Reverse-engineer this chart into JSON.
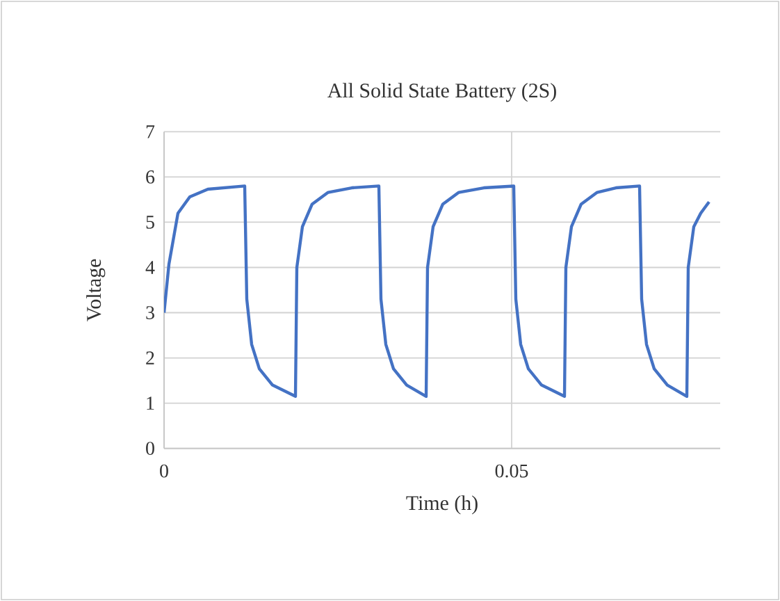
{
  "chart_data": {
    "type": "line",
    "title": "All Solid State Battery (2S)",
    "xlabel": "Time (h)",
    "ylabel": "Voltage",
    "xlim": [
      0,
      0.08
    ],
    "xticks": [
      0,
      0.05
    ],
    "ylim": [
      0,
      7
    ],
    "yticks": [
      0,
      1,
      2,
      3,
      4,
      5,
      6,
      7
    ],
    "grid": true,
    "marker": "none",
    "line_style": "solid",
    "series": [
      {
        "color": "#4472c4",
        "x": [
          0,
          0.0007,
          0.002,
          0.0037,
          0.0063,
          0.0116,
          0.0119,
          0.0126,
          0.0137,
          0.0156,
          0.0189,
          0.0191,
          0.0199,
          0.0213,
          0.0236,
          0.027,
          0.0309,
          0.0312,
          0.0319,
          0.033,
          0.0349,
          0.0377,
          0.0379,
          0.0387,
          0.0401,
          0.0424,
          0.046,
          0.0503,
          0.0506,
          0.0513,
          0.0524,
          0.0543,
          0.0576,
          0.0578,
          0.0586,
          0.06,
          0.0623,
          0.065,
          0.0684,
          0.0687,
          0.0694,
          0.0705,
          0.0724,
          0.0752,
          0.0754,
          0.0762,
          0.0772,
          0.0784
        ],
        "values": [
          3,
          4.07,
          5.2,
          5.56,
          5.73,
          5.8,
          3.3,
          2.3,
          1.76,
          1.4,
          1.15,
          4.0,
          4.9,
          5.4,
          5.66,
          5.76,
          5.8,
          3.3,
          2.3,
          1.76,
          1.4,
          1.15,
          4.0,
          4.9,
          5.4,
          5.66,
          5.76,
          5.8,
          3.3,
          2.3,
          1.76,
          1.4,
          1.15,
          4.0,
          4.9,
          5.4,
          5.66,
          5.76,
          5.8,
          3.3,
          2.3,
          1.76,
          1.4,
          1.15,
          4.0,
          4.9,
          5.2,
          5.45
        ]
      }
    ]
  }
}
